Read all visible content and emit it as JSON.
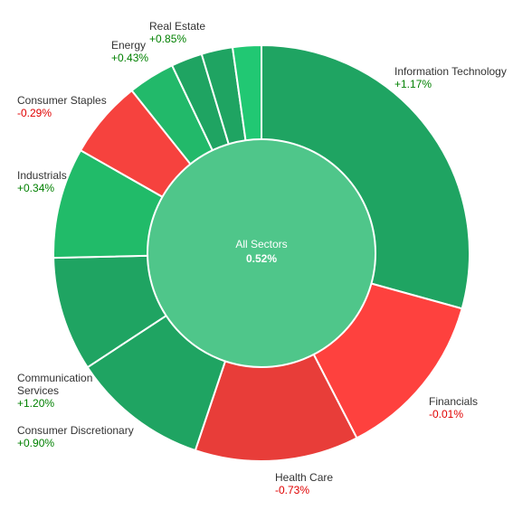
{
  "chart_data": {
    "type": "pie",
    "center": {
      "label": "All Sectors",
      "value": "0.52%",
      "color": "#4fc68a"
    },
    "slices": [
      {
        "name": "Information Technology",
        "change": "+1.17%",
        "weight": 29.0,
        "color": "#1fa462"
      },
      {
        "name": "Financials",
        "change": "-0.01%",
        "weight": 13.0,
        "color": "#fe413e"
      },
      {
        "name": "Health Care",
        "change": "-0.73%",
        "weight": 12.6,
        "color": "#e83d39"
      },
      {
        "name": "Consumer Discretionary",
        "change": "+0.90%",
        "weight": 10.5,
        "color": "#1fa462"
      },
      {
        "name": "Communication Services",
        "change": "+1.20%",
        "weight": 8.8,
        "color": "#1fa462"
      },
      {
        "name": "Industrials",
        "change": "+0.34%",
        "weight": 8.5,
        "color": "#21bb69"
      },
      {
        "name": "Consumer Staples",
        "change": "-0.29%",
        "weight": 6.0,
        "color": "#f6423e"
      },
      {
        "name": "Energy",
        "change": "+0.43%",
        "weight": 3.6,
        "color": "#22b96a"
      },
      {
        "name": "",
        "change": "",
        "weight": 2.4,
        "color": "#1fa462"
      },
      {
        "name": "",
        "change": "",
        "weight": 2.4,
        "color": "#1fa462"
      },
      {
        "name": "Real Estate",
        "change": "+0.85%",
        "weight": 2.2,
        "color": "#21c873"
      }
    ],
    "text_colors": {
      "positive": "#008000",
      "negative": "#e00000"
    }
  }
}
